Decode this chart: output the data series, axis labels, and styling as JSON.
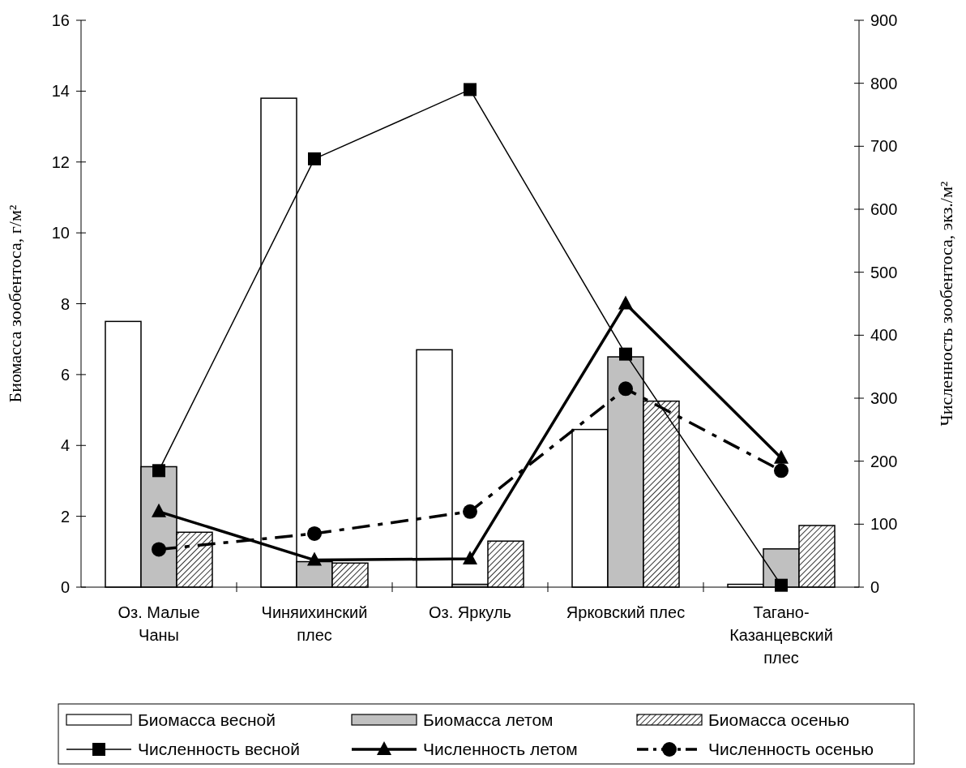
{
  "chart_data": {
    "type": "bar",
    "categories": [
      "Оз. Малые\nЧаны",
      "Чиняихинский\nплес",
      "Оз. Яркуль",
      "Ярковский плес",
      "Тагано-\nКазанцевский\nплес"
    ],
    "ylabel": "Биомасса зообентоса, г/м²",
    "y2label": "Численность зообентоса, экз./м²",
    "ylim": [
      0,
      16
    ],
    "yticks": [
      0,
      2,
      4,
      6,
      8,
      10,
      12,
      14,
      16
    ],
    "y2lim": [
      0,
      900
    ],
    "y2ticks": [
      0,
      100,
      200,
      300,
      400,
      500,
      600,
      700,
      800,
      900
    ],
    "legend": "bottom",
    "grid": false,
    "series": [
      {
        "name": "Биомасса весной",
        "color": "#ffffff",
        "values": [
          7.5,
          13.8,
          6.7,
          4.45,
          0.08
        ]
      },
      {
        "name": "Биомасса летом",
        "color": "#c0c0c0",
        "values": [
          3.4,
          0.72,
          0.08,
          6.5,
          1.08
        ]
      },
      {
        "name": "Биомасса осенью",
        "color": "#000000",
        "values": [
          1.55,
          0.68,
          1.3,
          5.25,
          1.74
        ]
      },
      {
        "name": "Численность весной",
        "type": "line",
        "axis": "y2",
        "color": "#000000",
        "marker": "square",
        "line_style": "solid",
        "values": [
          185,
          680,
          790,
          370,
          3
        ]
      },
      {
        "name": "Численность летом",
        "type": "line",
        "axis": "y2",
        "color": "#000000",
        "marker": "triangle",
        "line_style": "solid",
        "values": [
          120,
          43,
          45,
          450,
          205
        ]
      },
      {
        "name": "Численность осенью",
        "type": "line",
        "axis": "y2",
        "color": "#000000",
        "marker": "circle",
        "line_style": "dashed",
        "values": [
          60,
          85,
          120,
          315,
          185
        ]
      }
    ]
  }
}
